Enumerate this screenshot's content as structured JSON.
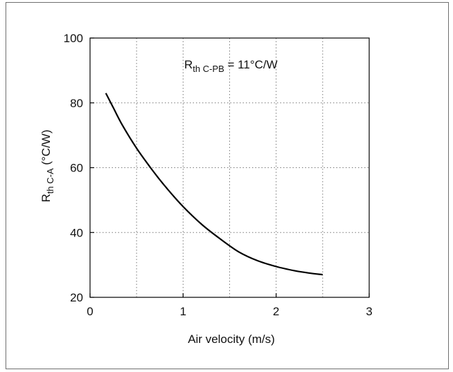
{
  "chart_data": {
    "type": "line",
    "annotation": {
      "base": "R",
      "sub": "th C-PB",
      "rest": " = 11°C/W"
    },
    "xlabel": "Air velocity (m/s)",
    "ylabel": {
      "base": "R",
      "sub": "th C-A",
      "rest": " (°C/W)"
    },
    "xlim": [
      0,
      3
    ],
    "ylim": [
      20,
      100
    ],
    "xticks": [
      0,
      1,
      2,
      3
    ],
    "yticks": [
      20,
      40,
      60,
      80,
      100
    ],
    "xgrid": [
      0.5,
      1,
      1.5,
      2,
      2.5
    ],
    "ygrid": [
      40,
      60,
      80
    ],
    "grid": true,
    "grid_style": "dotted",
    "series": [
      {
        "values": [
          [
            0.17,
            83
          ],
          [
            0.25,
            78.5
          ],
          [
            0.35,
            73
          ],
          [
            0.5,
            66
          ],
          [
            0.65,
            60
          ],
          [
            0.8,
            54.5
          ],
          [
            1.0,
            48
          ],
          [
            1.2,
            42.5
          ],
          [
            1.4,
            38
          ],
          [
            1.6,
            34
          ],
          [
            1.8,
            31.3
          ],
          [
            2.0,
            29.5
          ],
          [
            2.2,
            28.2
          ],
          [
            2.35,
            27.5
          ],
          [
            2.5,
            27
          ]
        ],
        "color": "#000000"
      }
    ]
  }
}
